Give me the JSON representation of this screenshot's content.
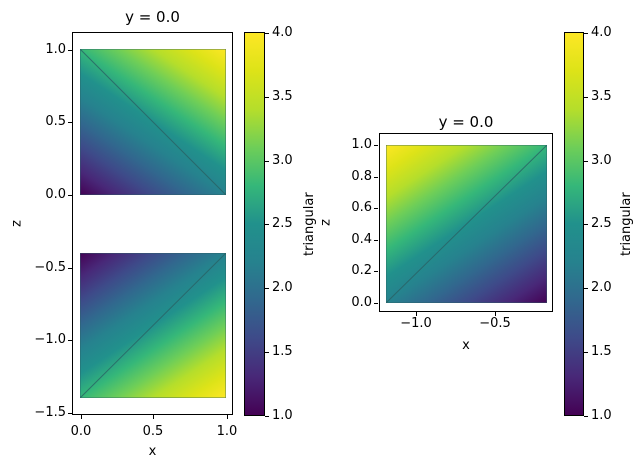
{
  "figure": {
    "background": "#ffffff",
    "text_color": "#000000"
  },
  "colormap": {
    "name": "viridis",
    "stops": [
      "#440154",
      "#482878",
      "#3e4a89",
      "#31688e",
      "#26828e",
      "#21918c",
      "#35b779",
      "#6ece58",
      "#b5de2b",
      "#dde318",
      "#fde725"
    ]
  },
  "chart_data": [
    {
      "type": "heatmap",
      "shading": "gouraud",
      "title": "y = 0.0",
      "xlabel": "x",
      "ylabel": "z",
      "xlim": [
        -0.05,
        1.05
      ],
      "ylim": [
        -1.52,
        1.12
      ],
      "xticks": [
        "0.0",
        "0.5",
        "1.0"
      ],
      "yticks": [
        "1.0",
        "0.5",
        "0.0",
        "−0.5",
        "−1.0",
        "−1.5"
      ],
      "grid": false,
      "quads": [
        {
          "x_range": [
            0.0,
            1.0
          ],
          "z_range": [
            0.0,
            1.0
          ],
          "corner_values": {
            "bottom_left": 1.0,
            "bottom_right": 2.2,
            "top_left": 2.8,
            "top_right": 4.0
          },
          "diagonal": "tl-br"
        },
        {
          "x_range": [
            0.0,
            1.0
          ],
          "z_range": [
            -1.4,
            -0.4
          ],
          "corner_values": {
            "bottom_left": 2.8,
            "bottom_right": 4.0,
            "top_left": 1.0,
            "top_right": 2.2
          },
          "diagonal": "bl-tr"
        }
      ],
      "colorbar": {
        "label": "triangular",
        "vmin": 1.0,
        "vmax": 4.0,
        "ticks": [
          "4.0",
          "3.5",
          "3.0",
          "2.5",
          "2.0",
          "1.5",
          "1.0"
        ]
      }
    },
    {
      "type": "heatmap",
      "shading": "gouraud",
      "title": "y = 0.0",
      "xlabel": "x",
      "ylabel": "z",
      "xlim": [
        -1.25,
        -0.15
      ],
      "ylim": [
        -0.05,
        1.05
      ],
      "xticks": [
        "−1.0",
        "−0.5"
      ],
      "yticks": [
        "1.0",
        "0.8",
        "0.6",
        "0.4",
        "0.2",
        "0.0"
      ],
      "grid": false,
      "quads": [
        {
          "x_range": [
            -1.2,
            -0.2
          ],
          "z_range": [
            0.0,
            1.0
          ],
          "corner_values": {
            "bottom_left": 2.2,
            "bottom_right": 1.0,
            "top_left": 4.0,
            "top_right": 2.8
          },
          "diagonal": "bl-tr"
        }
      ],
      "colorbar": {
        "label": "triangular",
        "vmin": 1.0,
        "vmax": 4.0,
        "ticks": [
          "4.0",
          "3.5",
          "3.0",
          "2.5",
          "2.0",
          "1.5",
          "1.0"
        ]
      }
    }
  ],
  "edge_color": "rgba(42,96,100,0.8)"
}
